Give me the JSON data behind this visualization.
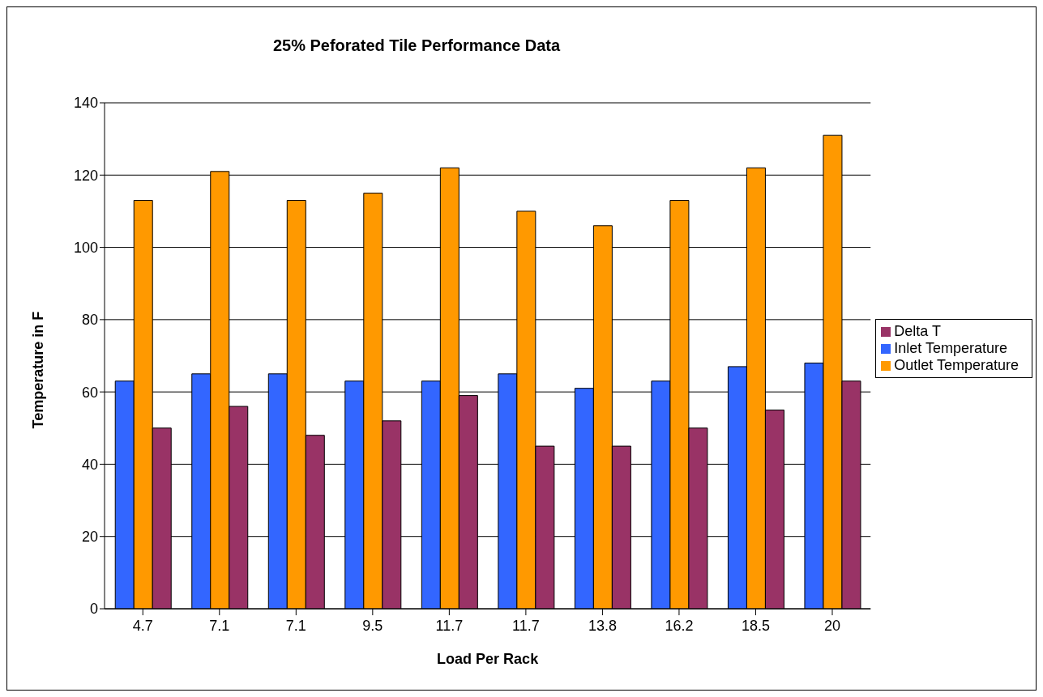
{
  "chart_data": {
    "type": "bar",
    "title": "25% Peforated Tile Performance Data",
    "xlabel": "Load Per Rack",
    "ylabel": "Temperature in F",
    "categories": [
      "4.7",
      "7.1",
      "7.1",
      "9.5",
      "11.7",
      "11.7",
      "13.8",
      "16.2",
      "18.5",
      "20"
    ],
    "series": [
      {
        "name": "Inlet Temperature",
        "color": "#3366ff",
        "values": [
          63,
          65,
          65,
          63,
          63,
          65,
          61,
          63,
          67,
          68
        ]
      },
      {
        "name": "Outlet Temperature",
        "color": "#ff9900",
        "values": [
          113,
          121,
          113,
          115,
          122,
          110,
          106,
          113,
          122,
          131
        ]
      },
      {
        "name": "Delta T",
        "color": "#993366",
        "values": [
          50,
          56,
          48,
          52,
          59,
          45,
          45,
          50,
          55,
          63
        ]
      }
    ],
    "ylim": [
      0,
      140
    ],
    "yticks": [
      0,
      20,
      40,
      60,
      80,
      100,
      120,
      140
    ],
    "grid": "y",
    "legend": "right"
  }
}
